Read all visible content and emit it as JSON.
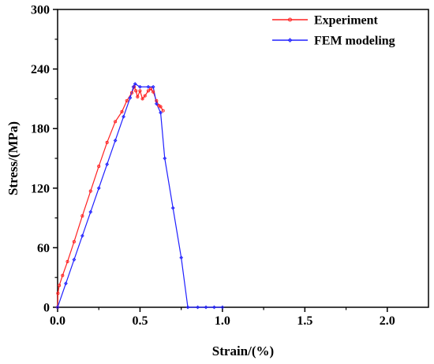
{
  "chart_data": {
    "type": "line",
    "title": "",
    "xlabel": "Strain/(%)",
    "ylabel": "Stress/(MPa)",
    "xlim": [
      0,
      2.25
    ],
    "ylim": [
      0,
      300
    ],
    "x_ticks": [
      0.0,
      0.5,
      1.0,
      1.5,
      2.0
    ],
    "x_tick_labels": [
      "0.0",
      "0.5",
      "1.0",
      "1.5",
      "2.0"
    ],
    "y_ticks": [
      0,
      60,
      120,
      180,
      240,
      300
    ],
    "y_tick_labels": [
      "0",
      "60",
      "120",
      "180",
      "240",
      "300"
    ],
    "grid": false,
    "legend_position": "top-right",
    "series": [
      {
        "name": "Experiment",
        "color": "#ff2020",
        "marker": "small-circle",
        "points": [
          [
            0.0,
            0
          ],
          [
            0.002,
            14
          ],
          [
            0.01,
            22
          ],
          [
            0.03,
            32
          ],
          [
            0.06,
            46
          ],
          [
            0.1,
            66
          ],
          [
            0.15,
            92
          ],
          [
            0.2,
            117
          ],
          [
            0.25,
            142
          ],
          [
            0.3,
            166
          ],
          [
            0.35,
            187
          ],
          [
            0.39,
            197
          ],
          [
            0.42,
            208
          ],
          [
            0.45,
            216
          ],
          [
            0.465,
            222
          ],
          [
            0.475,
            218
          ],
          [
            0.485,
            212
          ],
          [
            0.5,
            218
          ],
          [
            0.515,
            210
          ],
          [
            0.53,
            213
          ],
          [
            0.55,
            218
          ],
          [
            0.565,
            220
          ],
          [
            0.58,
            217
          ],
          [
            0.6,
            208
          ],
          [
            0.615,
            203
          ],
          [
            0.625,
            202
          ],
          [
            0.64,
            198
          ]
        ]
      },
      {
        "name": "FEM modeling",
        "color": "#2020ff",
        "marker": "small-diamond",
        "points": [
          [
            0.0,
            0
          ],
          [
            0.05,
            24
          ],
          [
            0.1,
            48
          ],
          [
            0.15,
            72
          ],
          [
            0.2,
            96
          ],
          [
            0.25,
            120
          ],
          [
            0.3,
            144
          ],
          [
            0.35,
            168
          ],
          [
            0.4,
            192
          ],
          [
            0.44,
            211
          ],
          [
            0.46,
            222
          ],
          [
            0.47,
            225
          ],
          [
            0.5,
            222
          ],
          [
            0.55,
            222
          ],
          [
            0.58,
            222
          ],
          [
            0.6,
            205
          ],
          [
            0.625,
            196
          ],
          [
            0.65,
            150
          ],
          [
            0.7,
            100
          ],
          [
            0.75,
            50
          ],
          [
            0.79,
            0
          ],
          [
            0.85,
            0
          ],
          [
            0.9,
            0
          ],
          [
            0.95,
            0
          ],
          [
            1.0,
            0
          ]
        ]
      }
    ]
  }
}
